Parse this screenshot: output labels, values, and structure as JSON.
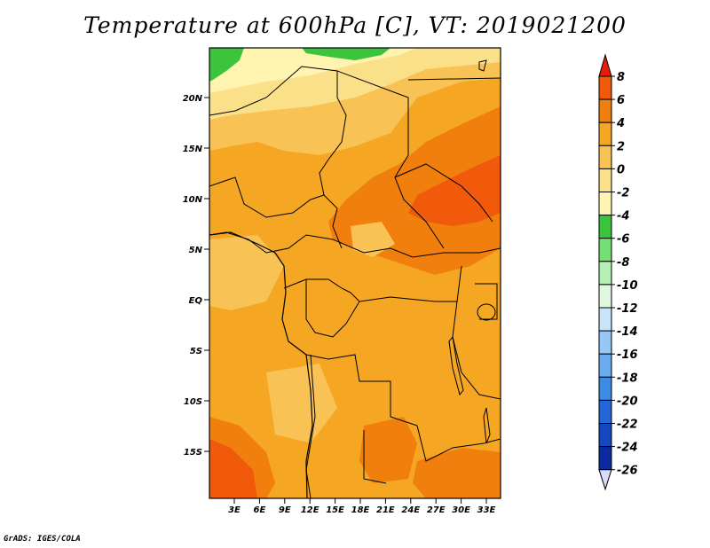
{
  "title": "Temperature at 600hPa [C], VT: 2019021200",
  "credit": "GrADS: IGES/COLA",
  "map": {
    "lat_labels": [
      "20N",
      "15N",
      "10N",
      "5N",
      "EQ",
      "5S",
      "10S",
      "15S"
    ],
    "lon_labels": [
      "3E",
      "6E",
      "9E",
      "12E",
      "15E",
      "18E",
      "21E",
      "24E",
      "27E",
      "30E",
      "33E"
    ],
    "base_color": "#f5a623",
    "regions": [
      {
        "name": "warm-4-6",
        "color": "#f07f0e"
      },
      {
        "name": "warm-6-8",
        "color": "#f05a0a"
      },
      {
        "name": "mild-0-2",
        "color": "#f9c255"
      },
      {
        "name": "cool-neg2-0",
        "color": "#fbe08a"
      },
      {
        "name": "cold-neg4-neg2",
        "color": "#fff4b0"
      },
      {
        "name": "cold-neg6-neg4",
        "color": "#3cc43c"
      }
    ]
  },
  "colorbar": {
    "labels": [
      "8",
      "6",
      "4",
      "2",
      "0",
      "-2",
      "-4",
      "-6",
      "-8",
      "-10",
      "-12",
      "-14",
      "-16",
      "-18",
      "-20",
      "-22",
      "-24",
      "-26"
    ],
    "colors": [
      "#e61b0a",
      "#f05a0a",
      "#f07f0e",
      "#f5a623",
      "#f9c255",
      "#fbe08a",
      "#fff4b0",
      "#3cc43c",
      "#74e074",
      "#b4f0b4",
      "#e0f8e0",
      "#c8e4fa",
      "#96c8f5",
      "#6aaaf0",
      "#3c8ce6",
      "#2366d8",
      "#1448c0",
      "#0a2aa0",
      "#08106a",
      "#d8dcf8"
    ]
  }
}
